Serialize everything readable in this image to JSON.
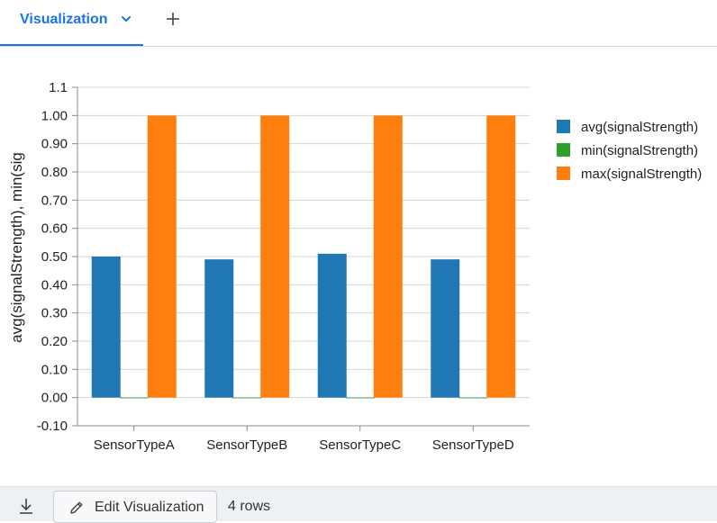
{
  "tabs": {
    "active_label": "Visualization"
  },
  "footer": {
    "edit_label": "Edit Visualization",
    "rows_label": "4 rows"
  },
  "colors": {
    "accent": "#1a73e8",
    "avg": "#1f77b4",
    "min": "#2ca02c",
    "max": "#ff7f0e"
  },
  "chart_data": {
    "type": "bar",
    "categories": [
      "SensorTypeA",
      "SensorTypeB",
      "SensorTypeC",
      "SensorTypeD"
    ],
    "series": [
      {
        "name": "avg(signalStrength)",
        "values": [
          0.5,
          0.49,
          0.51,
          0.49
        ],
        "color": "#1f77b4"
      },
      {
        "name": "min(signalStrength)",
        "values": [
          0.0,
          0.0,
          0.0,
          0.0
        ],
        "color": "#2ca02c"
      },
      {
        "name": "max(signalStrength)",
        "values": [
          1.0,
          1.0,
          1.0,
          1.0
        ],
        "color": "#ff7f0e"
      }
    ],
    "ylabel": "avg(signalStrength), min(sig",
    "ylim": [
      -0.1,
      1.1
    ],
    "yticks": [
      {
        "value": -0.1,
        "label": "-0.10"
      },
      {
        "value": 0.0,
        "label": "0.00"
      },
      {
        "value": 0.1,
        "label": "0.10"
      },
      {
        "value": 0.2,
        "label": "0.20"
      },
      {
        "value": 0.3,
        "label": "0.30"
      },
      {
        "value": 0.4,
        "label": "0.40"
      },
      {
        "value": 0.5,
        "label": "0.50"
      },
      {
        "value": 0.6,
        "label": "0.60"
      },
      {
        "value": 0.7,
        "label": "0.70"
      },
      {
        "value": 0.8,
        "label": "0.80"
      },
      {
        "value": 0.9,
        "label": "0.90"
      },
      {
        "value": 1.0,
        "label": "1.00"
      },
      {
        "value": 1.1,
        "label": "1.1"
      }
    ],
    "grid": true,
    "legend": "right"
  }
}
